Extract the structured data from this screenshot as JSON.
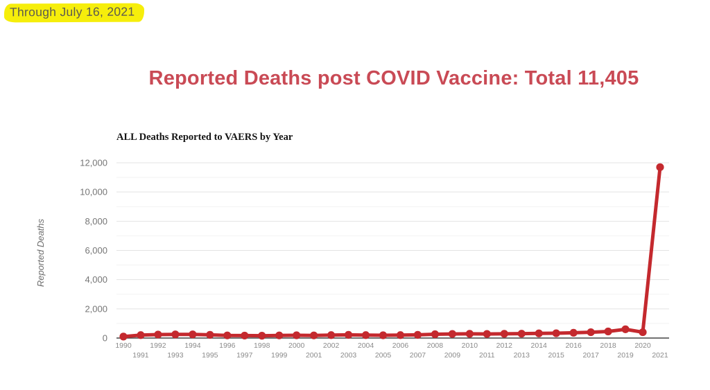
{
  "page": {
    "note": "Through July 16, 2021",
    "title": "Reported Deaths post COVID Vaccine: Total 11,405"
  },
  "colors": {
    "title_red": "#c94a55",
    "line_red": "#c4292e",
    "highlight_yellow": "#f6ee0b",
    "note_text": "#5d5b50",
    "axis_label_gray": "#757575",
    "x_label_gray": "#8a8a8a",
    "gridline_major": "#e3e3e3",
    "gridline_minor": "#f2f2f2",
    "axis_line": "#444444",
    "background": "#ffffff"
  },
  "chart_data": {
    "type": "line",
    "title": "ALL Deaths Reported to VAERS by Year",
    "xlabel": "",
    "ylabel": "Reported Deaths",
    "x": [
      1990,
      1991,
      1992,
      1993,
      1994,
      1995,
      1996,
      1997,
      1998,
      1999,
      2000,
      2001,
      2002,
      2003,
      2004,
      2005,
      2006,
      2007,
      2008,
      2009,
      2010,
      2011,
      2012,
      2013,
      2014,
      2015,
      2016,
      2017,
      2018,
      2019,
      2020,
      2021
    ],
    "values": [
      100,
      200,
      240,
      250,
      250,
      220,
      180,
      170,
      160,
      180,
      190,
      180,
      200,
      220,
      200,
      190,
      200,
      220,
      260,
      280,
      290,
      280,
      290,
      300,
      320,
      330,
      360,
      400,
      450,
      600,
      400,
      11700
    ],
    "ylim": [
      0,
      12000
    ],
    "ytick_step": 2000,
    "ytick_minor_step": 1000,
    "ytick_labels": [
      "0",
      "2,000",
      "4,000",
      "6,000",
      "8,000",
      "10,000",
      "12,000"
    ],
    "grid": true,
    "legend": false,
    "marker": "circle",
    "line_width": 5,
    "series_color": "#c4292e",
    "x_label_stagger": true
  }
}
